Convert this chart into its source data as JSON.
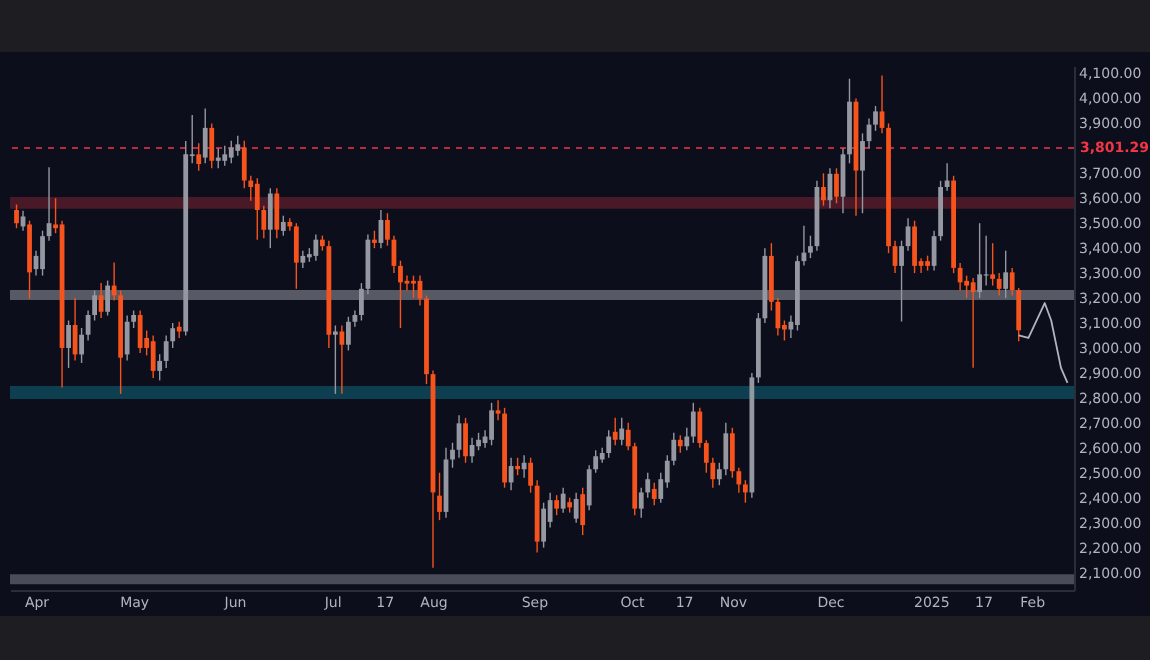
{
  "chart_data": {
    "type": "candlestick",
    "x": [
      "2024-03-26",
      "2024-03-28",
      "2024-03-30",
      "2024-04-01",
      "2024-04-03",
      "2024-04-05",
      "2024-04-07",
      "2024-04-09",
      "2024-04-11",
      "2024-04-13",
      "2024-04-15",
      "2024-04-17",
      "2024-04-19",
      "2024-04-21",
      "2024-04-23",
      "2024-04-25",
      "2024-04-27",
      "2024-04-29",
      "2024-05-01",
      "2024-05-03",
      "2024-05-05",
      "2024-05-07",
      "2024-05-09",
      "2024-05-11",
      "2024-05-13",
      "2024-05-15",
      "2024-05-17",
      "2024-05-19",
      "2024-05-21",
      "2024-05-23",
      "2024-05-25",
      "2024-05-27",
      "2024-05-29",
      "2024-05-31",
      "2024-06-02",
      "2024-06-04",
      "2024-06-06",
      "2024-06-08",
      "2024-06-10",
      "2024-06-12",
      "2024-06-14",
      "2024-06-16",
      "2024-06-18",
      "2024-06-20",
      "2024-06-22",
      "2024-06-24",
      "2024-06-26",
      "2024-06-28",
      "2024-06-30",
      "2024-07-02",
      "2024-07-04",
      "2024-07-06",
      "2024-07-08",
      "2024-07-10",
      "2024-07-12",
      "2024-07-14",
      "2024-07-16",
      "2024-07-18",
      "2024-07-20",
      "2024-07-22",
      "2024-07-24",
      "2024-07-26",
      "2024-07-28",
      "2024-07-30",
      "2024-08-01",
      "2024-08-03",
      "2024-08-05",
      "2024-08-07",
      "2024-08-09",
      "2024-08-11",
      "2024-08-13",
      "2024-08-15",
      "2024-08-17",
      "2024-08-19",
      "2024-08-21",
      "2024-08-23",
      "2024-08-25",
      "2024-08-27",
      "2024-08-29",
      "2024-08-31",
      "2024-09-02",
      "2024-09-04",
      "2024-09-06",
      "2024-09-08",
      "2024-09-10",
      "2024-09-12",
      "2024-09-14",
      "2024-09-16",
      "2024-09-18",
      "2024-09-20",
      "2024-09-22",
      "2024-09-24",
      "2024-09-26",
      "2024-09-28",
      "2024-09-30",
      "2024-10-02",
      "2024-10-04",
      "2024-10-06",
      "2024-10-08",
      "2024-10-10",
      "2024-10-12",
      "2024-10-14",
      "2024-10-16",
      "2024-10-18",
      "2024-10-20",
      "2024-10-22",
      "2024-10-24",
      "2024-10-26",
      "2024-10-28",
      "2024-10-30",
      "2024-11-01",
      "2024-11-03",
      "2024-11-05",
      "2024-11-07",
      "2024-11-09",
      "2024-11-11",
      "2024-11-13",
      "2024-11-15",
      "2024-11-17",
      "2024-11-19",
      "2024-11-21",
      "2024-11-23",
      "2024-11-25",
      "2024-11-27",
      "2024-11-29",
      "2024-12-01",
      "2024-12-03",
      "2024-12-05",
      "2024-12-07",
      "2024-12-09",
      "2024-12-11",
      "2024-12-13",
      "2024-12-15",
      "2024-12-17",
      "2024-12-19",
      "2024-12-21",
      "2024-12-23",
      "2024-12-25",
      "2024-12-27",
      "2024-12-29",
      "2024-12-31",
      "2025-01-02",
      "2025-01-04",
      "2025-01-06",
      "2025-01-08",
      "2025-01-10",
      "2025-01-12",
      "2025-01-14",
      "2025-01-16",
      "2025-01-18",
      "2025-01-20",
      "2025-01-22",
      "2025-01-24",
      "2025-01-26",
      "2025-01-28"
    ],
    "ohlc": [
      [
        3553,
        3575,
        3480,
        3500
      ],
      [
        3487,
        3550,
        3470,
        3527
      ],
      [
        3495,
        3510,
        3198,
        3303
      ],
      [
        3316,
        3390,
        3290,
        3369
      ],
      [
        3316,
        3470,
        3290,
        3448
      ],
      [
        3448,
        3724,
        3430,
        3500
      ],
      [
        3495,
        3600,
        3460,
        3480
      ],
      [
        3495,
        3510,
        2842,
        3000
      ],
      [
        3000,
        3110,
        2920,
        3092
      ],
      [
        3092,
        3200,
        2950,
        2974
      ],
      [
        2974,
        3080,
        2940,
        3053
      ],
      [
        3053,
        3150,
        3030,
        3132
      ],
      [
        3132,
        3230,
        3110,
        3211
      ],
      [
        3211,
        3260,
        3120,
        3145
      ],
      [
        3145,
        3270,
        3130,
        3250
      ],
      [
        3250,
        3342,
        3190,
        3211
      ],
      [
        3211,
        3230,
        2816,
        2961
      ],
      [
        2974,
        3130,
        2950,
        3105
      ],
      [
        3105,
        3150,
        3080,
        3132
      ],
      [
        3132,
        3150,
        2980,
        3000
      ],
      [
        3040,
        3070,
        2970,
        3000
      ],
      [
        3027,
        3050,
        2880,
        2908
      ],
      [
        2908,
        2975,
        2870,
        2948
      ],
      [
        2948,
        3050,
        2920,
        3027
      ],
      [
        3027,
        3100,
        3000,
        3079
      ],
      [
        3085,
        3105,
        3040,
        3066
      ],
      [
        3066,
        3829,
        3050,
        3776
      ],
      [
        3769,
        3934,
        3740,
        3776
      ],
      [
        3776,
        3820,
        3710,
        3737
      ],
      [
        3763,
        3960,
        3740,
        3882
      ],
      [
        3882,
        3900,
        3720,
        3750
      ],
      [
        3750,
        3800,
        3720,
        3763
      ],
      [
        3750,
        3810,
        3730,
        3776
      ],
      [
        3763,
        3830,
        3740,
        3803
      ],
      [
        3790,
        3850,
        3770,
        3816
      ],
      [
        3803,
        3830,
        3640,
        3671
      ],
      [
        3671,
        3690,
        3590,
        3645
      ],
      [
        3658,
        3680,
        3434,
        3553
      ],
      [
        3553,
        3570,
        3440,
        3474
      ],
      [
        3474,
        3640,
        3400,
        3619
      ],
      [
        3619,
        3640,
        3440,
        3474
      ],
      [
        3469,
        3530,
        3450,
        3505
      ],
      [
        3505,
        3520,
        3470,
        3487
      ],
      [
        3487,
        3500,
        3237,
        3342
      ],
      [
        3342,
        3390,
        3320,
        3369
      ],
      [
        3363,
        3400,
        3345,
        3376
      ],
      [
        3369,
        3455,
        3350,
        3434
      ],
      [
        3434,
        3450,
        3390,
        3408
      ],
      [
        3408,
        3430,
        3000,
        3053
      ],
      [
        3053,
        3090,
        2816,
        3066
      ],
      [
        3066,
        3090,
        2816,
        3013
      ],
      [
        3013,
        3125,
        2990,
        3105
      ],
      [
        3105,
        3150,
        3085,
        3132
      ],
      [
        3132,
        3260,
        3110,
        3237
      ],
      [
        3237,
        3455,
        3215,
        3434
      ],
      [
        3434,
        3470,
        3400,
        3421
      ],
      [
        3421,
        3553,
        3400,
        3513
      ],
      [
        3513,
        3540,
        3410,
        3434
      ],
      [
        3434,
        3450,
        3300,
        3329
      ],
      [
        3329,
        3350,
        3080,
        3263
      ],
      [
        3269,
        3290,
        3230,
        3258
      ],
      [
        3269,
        3290,
        3200,
        3258
      ],
      [
        3269,
        3290,
        3170,
        3198
      ],
      [
        3198,
        3210,
        2855,
        2895
      ],
      [
        2895,
        2910,
        2119,
        2421
      ],
      [
        2408,
        2500,
        2310,
        2343
      ],
      [
        2343,
        2600,
        2320,
        2553
      ],
      [
        2553,
        2620,
        2520,
        2592
      ],
      [
        2592,
        2730,
        2560,
        2698
      ],
      [
        2698,
        2720,
        2540,
        2566
      ],
      [
        2566,
        2640,
        2540,
        2611
      ],
      [
        2606,
        2660,
        2590,
        2632
      ],
      [
        2619,
        2670,
        2600,
        2645
      ],
      [
        2632,
        2780,
        2610,
        2750
      ],
      [
        2750,
        2790,
        2710,
        2737
      ],
      [
        2737,
        2760,
        2440,
        2461
      ],
      [
        2461,
        2560,
        2430,
        2527
      ],
      [
        2527,
        2560,
        2490,
        2514
      ],
      [
        2514,
        2570,
        2480,
        2540
      ],
      [
        2540,
        2560,
        2420,
        2448
      ],
      [
        2448,
        2470,
        2180,
        2224
      ],
      [
        2224,
        2380,
        2200,
        2356
      ],
      [
        2303,
        2420,
        2280,
        2390
      ],
      [
        2390,
        2410,
        2330,
        2356
      ],
      [
        2356,
        2440,
        2340,
        2416
      ],
      [
        2382,
        2400,
        2340,
        2361
      ],
      [
        2316,
        2420,
        2300,
        2395
      ],
      [
        2414,
        2440,
        2250,
        2290
      ],
      [
        2369,
        2530,
        2350,
        2514
      ],
      [
        2514,
        2590,
        2500,
        2566
      ],
      [
        2553,
        2600,
        2540,
        2579
      ],
      [
        2579,
        2670,
        2560,
        2645
      ],
      [
        2664,
        2720,
        2610,
        2632
      ],
      [
        2632,
        2720,
        2610,
        2677
      ],
      [
        2672,
        2700,
        2590,
        2606
      ],
      [
        2606,
        2620,
        2330,
        2356
      ],
      [
        2356,
        2440,
        2320,
        2421
      ],
      [
        2421,
        2500,
        2400,
        2474
      ],
      [
        2435,
        2460,
        2370,
        2395
      ],
      [
        2395,
        2500,
        2380,
        2474
      ],
      [
        2461,
        2570,
        2440,
        2548
      ],
      [
        2548,
        2660,
        2530,
        2632
      ],
      [
        2632,
        2650,
        2580,
        2606
      ],
      [
        2606,
        2680,
        2590,
        2645
      ],
      [
        2645,
        2780,
        2620,
        2745
      ],
      [
        2745,
        2760,
        2600,
        2619
      ],
      [
        2619,
        2630,
        2500,
        2540
      ],
      [
        2540,
        2560,
        2440,
        2474
      ],
      [
        2474,
        2540,
        2450,
        2514
      ],
      [
        2514,
        2700,
        2490,
        2658
      ],
      [
        2658,
        2680,
        2480,
        2506
      ],
      [
        2506,
        2520,
        2420,
        2453
      ],
      [
        2453,
        2470,
        2380,
        2421
      ],
      [
        2421,
        2900,
        2400,
        2882
      ],
      [
        2882,
        3140,
        2860,
        3119
      ],
      [
        3119,
        3400,
        3100,
        3369
      ],
      [
        3369,
        3420,
        3150,
        3185
      ],
      [
        3185,
        3200,
        3050,
        3079
      ],
      [
        3092,
        3110,
        3030,
        3074
      ],
      [
        3074,
        3130,
        3040,
        3105
      ],
      [
        3092,
        3370,
        3070,
        3348
      ],
      [
        3348,
        3490,
        3330,
        3382
      ],
      [
        3382,
        3450,
        3360,
        3408
      ],
      [
        3408,
        3670,
        3390,
        3645
      ],
      [
        3645,
        3700,
        3570,
        3592
      ],
      [
        3592,
        3720,
        3560,
        3698
      ],
      [
        3698,
        3720,
        3580,
        3606
      ],
      [
        3606,
        3800,
        3540,
        3776
      ],
      [
        3776,
        4079,
        3740,
        3987
      ],
      [
        3987,
        4000,
        3530,
        3711
      ],
      [
        3711,
        3860,
        3540,
        3829
      ],
      [
        3829,
        3920,
        3800,
        3895
      ],
      [
        3895,
        3970,
        3870,
        3948
      ],
      [
        3948,
        4092,
        3860,
        3882
      ],
      [
        3882,
        3900,
        3380,
        3408
      ],
      [
        3408,
        3430,
        3300,
        3329
      ],
      [
        3329,
        3430,
        3106,
        3408
      ],
      [
        3408,
        3520,
        3390,
        3487
      ],
      [
        3487,
        3510,
        3300,
        3329
      ],
      [
        3348,
        3360,
        3300,
        3329
      ],
      [
        3348,
        3370,
        3310,
        3329
      ],
      [
        3329,
        3470,
        3310,
        3448
      ],
      [
        3448,
        3670,
        3430,
        3645
      ],
      [
        3645,
        3740,
        3630,
        3671
      ],
      [
        3671,
        3690,
        3300,
        3321
      ],
      [
        3321,
        3340,
        3230,
        3263
      ],
      [
        3269,
        3290,
        3200,
        3250
      ],
      [
        3263,
        3280,
        2921,
        3224
      ],
      [
        3224,
        3500,
        3200,
        3295
      ],
      [
        3290,
        3450,
        3250,
        3295
      ],
      [
        3295,
        3420,
        3250,
        3277
      ],
      [
        3277,
        3300,
        3210,
        3237
      ],
      [
        3237,
        3390,
        3200,
        3303
      ],
      [
        3303,
        3320,
        3210,
        3232
      ],
      [
        3232,
        3240,
        3027,
        3071
      ]
    ],
    "colors": [
      "#f7531c",
      "#9598a1",
      "#f7531c",
      "#9598a1",
      "#9598a1",
      "#9598a1",
      "#f7531c",
      "#f7531c",
      "#9598a1",
      "#f7531c",
      "#9598a1",
      "#9598a1",
      "#9598a1",
      "#f7531c",
      "#9598a1",
      "#f7531c",
      "#f7531c",
      "#9598a1",
      "#9598a1",
      "#f7531c",
      "#f7531c",
      "#f7531c",
      "#9598a1",
      "#9598a1",
      "#9598a1",
      "#f7531c",
      "#9598a1",
      "#9598a1",
      "#f7531c",
      "#9598a1",
      "#f7531c",
      "#9598a1",
      "#9598a1",
      "#9598a1",
      "#9598a1",
      "#f7531c",
      "#f7531c",
      "#f7531c",
      "#f7531c",
      "#9598a1",
      "#f7531c",
      "#9598a1",
      "#f7531c",
      "#f7531c",
      "#9598a1",
      "#9598a1",
      "#9598a1",
      "#f7531c",
      "#f7531c",
      "#9598a1",
      "#f7531c",
      "#9598a1",
      "#9598a1",
      "#9598a1",
      "#9598a1",
      "#f7531c",
      "#9598a1",
      "#f7531c",
      "#f7531c",
      "#f7531c",
      "#f7531c",
      "#f7531c",
      "#f7531c",
      "#f7531c",
      "#f7531c",
      "#f7531c",
      "#9598a1",
      "#9598a1",
      "#9598a1",
      "#f7531c",
      "#9598a1",
      "#9598a1",
      "#9598a1",
      "#9598a1",
      "#f7531c",
      "#f7531c",
      "#9598a1",
      "#f7531c",
      "#9598a1",
      "#f7531c",
      "#f7531c",
      "#9598a1",
      "#9598a1",
      "#f7531c",
      "#9598a1",
      "#f7531c",
      "#9598a1",
      "#f7531c",
      "#9598a1",
      "#9598a1",
      "#9598a1",
      "#9598a1",
      "#f7531c",
      "#9598a1",
      "#f7531c",
      "#f7531c",
      "#9598a1",
      "#9598a1",
      "#f7531c",
      "#9598a1",
      "#9598a1",
      "#9598a1",
      "#f7531c",
      "#9598a1",
      "#9598a1",
      "#f7531c",
      "#f7531c",
      "#f7531c",
      "#9598a1",
      "#9598a1",
      "#f7531c",
      "#f7531c",
      "#f7531c",
      "#9598a1",
      "#9598a1",
      "#9598a1",
      "#f7531c",
      "#f7531c",
      "#f7531c",
      "#9598a1",
      "#9598a1",
      "#9598a1",
      "#9598a1",
      "#9598a1",
      "#f7531c",
      "#9598a1",
      "#f7531c",
      "#9598a1",
      "#9598a1",
      "#f7531c",
      "#9598a1",
      "#9598a1",
      "#9598a1",
      "#f7531c",
      "#f7531c",
      "#f7531c",
      "#9598a1",
      "#9598a1",
      "#f7531c",
      "#f7531c",
      "#f7531c",
      "#9598a1",
      "#9598a1",
      "#9598a1",
      "#f7531c",
      "#f7531c",
      "#f7531c",
      "#f7531c",
      "#9598a1",
      "#9598a1",
      "#f7531c",
      "#f7531c",
      "#9598a1",
      "#f7531c",
      "#f7531c"
    ],
    "series": [
      {
        "type": "line",
        "x": [
          "2025-01-28",
          "2025-01-31",
          "2025-02-05",
          "2025-02-07",
          "2025-02-10",
          "2025-02-12"
        ],
        "values": [
          3050,
          3040,
          3180,
          3110,
          2920,
          2860
        ],
        "color": "#b2b5be"
      }
    ],
    "xlim": [
      "2024-03-24",
      "2025-02-14"
    ],
    "xticks": [
      {
        "value": "2024-04-01",
        "label": "Apr"
      },
      {
        "value": "2024-05-01",
        "label": "May"
      },
      {
        "value": "2024-06-01",
        "label": "Jun"
      },
      {
        "value": "2024-07-01",
        "label": "Jul"
      },
      {
        "value": "2024-07-17",
        "label": "17"
      },
      {
        "value": "2024-08-01",
        "label": "Aug"
      },
      {
        "value": "2024-09-01",
        "label": "Sep"
      },
      {
        "value": "2024-10-01",
        "label": "Oct"
      },
      {
        "value": "2024-10-17",
        "label": "17"
      },
      {
        "value": "2024-11-01",
        "label": "Nov"
      },
      {
        "value": "2024-12-01",
        "label": "Dec"
      },
      {
        "value": "2025-01-01",
        "label": "2025"
      },
      {
        "value": "2025-01-17",
        "label": "17"
      },
      {
        "value": "2025-02-01",
        "label": "Feb"
      }
    ],
    "ylim": [
      2030,
      4130
    ],
    "yticks": [
      {
        "value": 2100,
        "label": "2,100.00"
      },
      {
        "value": 2200,
        "label": "2,200.00"
      },
      {
        "value": 2300,
        "label": "2,300.00"
      },
      {
        "value": 2400,
        "label": "2,400.00"
      },
      {
        "value": 2500,
        "label": "2,500.00"
      },
      {
        "value": 2600,
        "label": "2,600.00"
      },
      {
        "value": 2700,
        "label": "2,700.00"
      },
      {
        "value": 2800,
        "label": "2,800.00"
      },
      {
        "value": 2900,
        "label": "2,900.00"
      },
      {
        "value": 3000,
        "label": "3,000.00"
      },
      {
        "value": 3100,
        "label": "3,100.00"
      },
      {
        "value": 3200,
        "label": "3,200.00"
      },
      {
        "value": 3300,
        "label": "3,300.00"
      },
      {
        "value": 3400,
        "label": "3,400.00"
      },
      {
        "value": 3500,
        "label": "3,500.00"
      },
      {
        "value": 3600,
        "label": "3,600.00"
      },
      {
        "value": 3700,
        "label": "3,700.00"
      },
      {
        "value": 3900,
        "label": "3,900.00"
      },
      {
        "value": 4000,
        "label": "4,000.00"
      },
      {
        "value": 4100,
        "label": "4,100.00"
      }
    ],
    "bands": [
      {
        "axis": "y",
        "from": 3558,
        "to": 3605,
        "color": "#5a1d2c"
      },
      {
        "axis": "y",
        "from": 3192,
        "to": 3232,
        "color": "#6a6d78"
      },
      {
        "axis": "y",
        "from": 2795,
        "to": 2848,
        "color": "#0f4c5e"
      },
      {
        "axis": "y",
        "from": 2053,
        "to": 2093,
        "color": "#5a5d6a"
      }
    ],
    "ref_lines": [
      {
        "axis": "y",
        "value": 3801.29,
        "label": "3,801.29",
        "color": "#f23645",
        "line_style": "dashed"
      }
    ]
  }
}
